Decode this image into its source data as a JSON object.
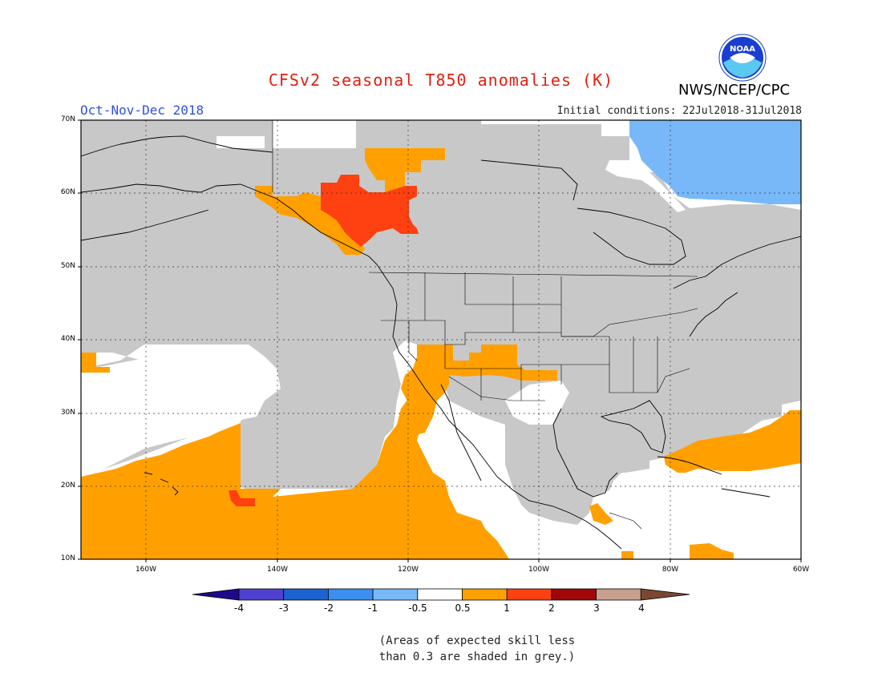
{
  "title": "CFSv2 seasonal T850 anomalies (K)",
  "period": "Oct-Nov-Dec 2018",
  "initial_conditions": "Initial conditions: 22Jul2018-31Jul2018",
  "agency": "NWS/NCEP/CPC",
  "logo_text": "NOAA",
  "lat_labels": [
    "70N",
    "60N",
    "50N",
    "40N",
    "30N",
    "20N",
    "10N"
  ],
  "lon_labels": [
    "160W",
    "140W",
    "120W",
    "100W",
    "80W",
    "60W"
  ],
  "colorbar": {
    "ticks": [
      "-4",
      "-3",
      "-2",
      "-1",
      "-0.5",
      "0.5",
      "1",
      "2",
      "3",
      "4"
    ],
    "colors": [
      "#1c0a8a",
      "#5040d0",
      "#1c62d0",
      "#3c8ef0",
      "#78b8f8",
      "#ffffff",
      "#ffa000",
      "#ff4010",
      "#a00808",
      "#c8a090",
      "#7a4830"
    ]
  },
  "footnote_line1": "(Areas of expected skill less",
  "footnote_line2": "than 0.3 are shaded in grey.)"
}
